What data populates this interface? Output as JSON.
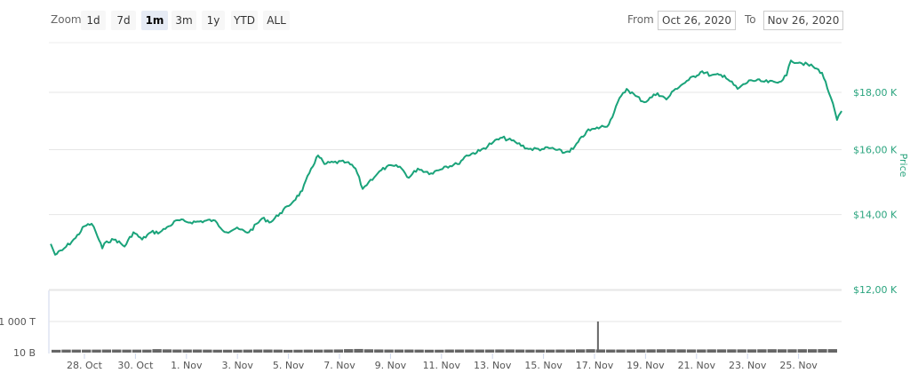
{
  "toolbar": {
    "zoom_label": "Zoom",
    "zoom_buttons": [
      "1d",
      "7d",
      "1m",
      "3m",
      "1y",
      "YTD",
      "ALL"
    ],
    "active_zoom": "1m",
    "from_label": "From",
    "from_value": "Oct 26, 2020",
    "to_label": "To",
    "to_value": "Nov 26, 2020"
  },
  "colors": {
    "line": "#1aa37a",
    "axis_text": "#2aa47e",
    "volume": "#666666",
    "grid": "#e6e6e6"
  },
  "chart_data": {
    "type": "line",
    "ylabel": "Price",
    "yscale": "log",
    "ylim": [
      12000,
      19800
    ],
    "y_ticks": [
      {
        "v": 18000,
        "label": "$18,00 K"
      },
      {
        "v": 16000,
        "label": "$16,00 K"
      },
      {
        "v": 14000,
        "label": "$14,00 K"
      },
      {
        "v": 12000,
        "label": "$12,00 K"
      }
    ],
    "x_unit": "days since Oct 26, 2020",
    "x_ticks": [
      {
        "t": 2,
        "label": "28. Oct"
      },
      {
        "t": 4,
        "label": "30. Oct"
      },
      {
        "t": 6,
        "label": "1. Nov"
      },
      {
        "t": 8,
        "label": "3. Nov"
      },
      {
        "t": 10,
        "label": "5. Nov"
      },
      {
        "t": 12,
        "label": "7. Nov"
      },
      {
        "t": 14,
        "label": "9. Nov"
      },
      {
        "t": 16,
        "label": "11. Nov"
      },
      {
        "t": 18,
        "label": "13. Nov"
      },
      {
        "t": 20,
        "label": "15. Nov"
      },
      {
        "t": 22,
        "label": "17. Nov"
      },
      {
        "t": 24,
        "label": "19. Nov"
      },
      {
        "t": 26,
        "label": "21. Nov"
      },
      {
        "t": 28,
        "label": "23. Nov"
      },
      {
        "t": 30,
        "label": "25. Nov"
      }
    ],
    "series": [
      {
        "name": "Price",
        "t": [
          0.68,
          0.85,
          1.13,
          1.65,
          2.0,
          2.28,
          2.45,
          2.7,
          2.87,
          3.22,
          3.57,
          3.92,
          4.26,
          4.61,
          4.96,
          5.31,
          5.66,
          6.01,
          6.36,
          7.05,
          7.57,
          7.92,
          8.45,
          8.97,
          9.32,
          9.67,
          10.01,
          10.54,
          10.89,
          11.16,
          11.41,
          11.76,
          12.28,
          12.63,
          12.91,
          13.15,
          13.5,
          13.85,
          14.37,
          14.72,
          15.07,
          15.59,
          16.11,
          16.63,
          16.98,
          17.51,
          18.03,
          18.38,
          18.9,
          19.42,
          19.94,
          20.29,
          20.82,
          21.16,
          21.69,
          22.03,
          22.56,
          22.91,
          23.26,
          23.61,
          23.95,
          24.47,
          24.82,
          25.17,
          25.69,
          26.22,
          26.56,
          27.09,
          27.61,
          28.13,
          28.66,
          29.18,
          29.53,
          29.7,
          30.05,
          30.57,
          30.92,
          31.27,
          31.51,
          31.69
        ],
        "values": [
          13180,
          12890,
          13010,
          13340,
          13670,
          13740,
          13500,
          13060,
          13250,
          13300,
          13110,
          13500,
          13300,
          13500,
          13500,
          13670,
          13840,
          13790,
          13790,
          13840,
          13500,
          13600,
          13500,
          13890,
          13790,
          14040,
          14250,
          14700,
          15390,
          15810,
          15530,
          15590,
          15590,
          15390,
          14760,
          14970,
          15240,
          15450,
          15450,
          15100,
          15390,
          15240,
          15450,
          15530,
          15810,
          15960,
          16250,
          16400,
          16250,
          16020,
          16020,
          16050,
          15900,
          16020,
          16610,
          16700,
          16850,
          17640,
          18130,
          17870,
          17640,
          17970,
          17740,
          18130,
          18460,
          18800,
          18640,
          18640,
          18130,
          18460,
          18400,
          18360,
          18640,
          19220,
          19140,
          18980,
          18740,
          17800,
          17010,
          17320
        ]
      }
    ],
    "volume": {
      "scale": "log",
      "y_ticks": [
        {
          "v": 10,
          "label": "10 B"
        },
        {
          "v": 1000000,
          "label": "1 000 T"
        }
      ],
      "unit": "billions",
      "spike": {
        "t": 22.1,
        "value": 1000000
      },
      "values": [
        28,
        30,
        30,
        30,
        30,
        31,
        31,
        30,
        30,
        30,
        36,
        33,
        31,
        31,
        31,
        30,
        29,
        29,
        29,
        30,
        31,
        31,
        30,
        28,
        29,
        30,
        30,
        31,
        32,
        36,
        38,
        34,
        32,
        31,
        31,
        31,
        30,
        29,
        29,
        31,
        31,
        31,
        31,
        31,
        32,
        32,
        31,
        30,
        30,
        30,
        31,
        31,
        33,
        35,
        32,
        31,
        31,
        31,
        32,
        33,
        34,
        34,
        33,
        32,
        32,
        33,
        33,
        33,
        33,
        33,
        34,
        35,
        34,
        34,
        35,
        35,
        36,
        36
      ]
    }
  }
}
